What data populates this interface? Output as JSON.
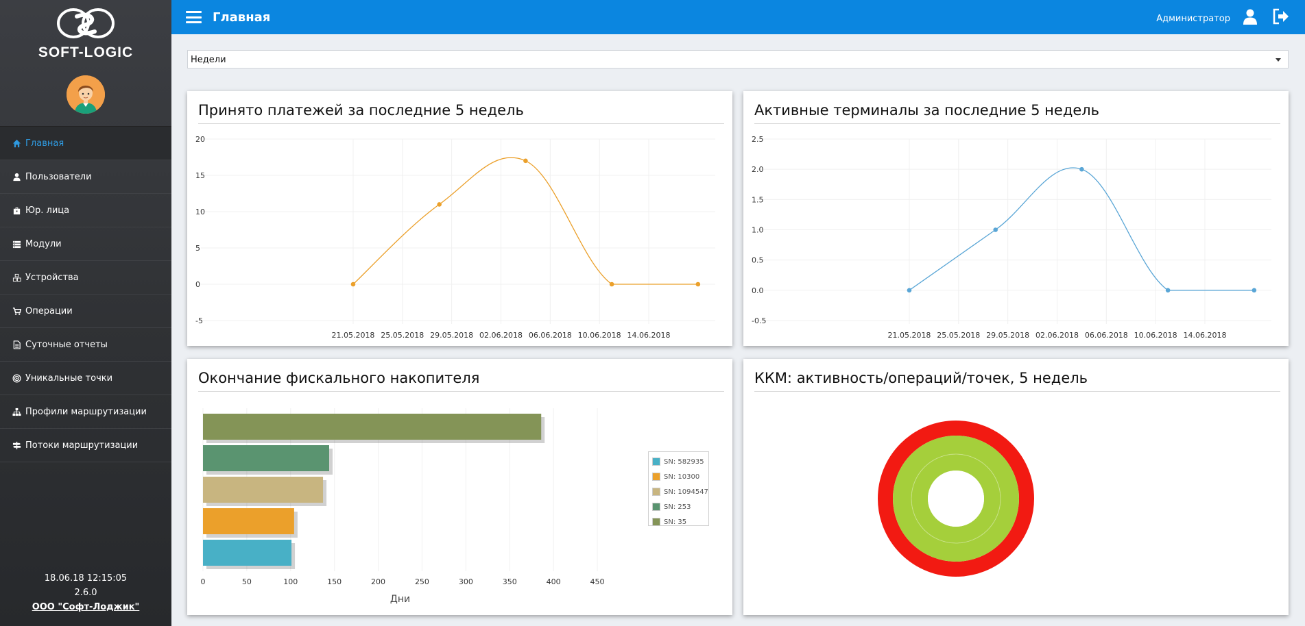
{
  "sidebar": {
    "logo_text": "SOFT-LOGIC",
    "items": [
      {
        "label": "Главная",
        "icon": "home-icon",
        "active": true
      },
      {
        "label": "Пользователи",
        "icon": "user-icon"
      },
      {
        "label": "Юр. лица",
        "icon": "briefcase-icon"
      },
      {
        "label": "Модули",
        "icon": "server-icon"
      },
      {
        "label": "Устройства",
        "icon": "cubes-icon"
      },
      {
        "label": "Операции",
        "icon": "cart-icon"
      },
      {
        "label": "Суточные отчеты",
        "icon": "document-icon"
      },
      {
        "label": "Уникальные точки",
        "icon": "bullseye-icon"
      },
      {
        "label": "Профили маршрутизации",
        "icon": "sitemap-icon"
      },
      {
        "label": "Потоки маршрутизации",
        "icon": "signpost-icon"
      }
    ],
    "footer": {
      "datetime": "18.06.18 12:15:05",
      "version": "2.6.0",
      "company": "ООО \"Софт-Лоджик\""
    }
  },
  "header": {
    "title": "Главная",
    "user": "Администратор"
  },
  "period_select": {
    "value": "Недели"
  },
  "colors": {
    "accent": "#0b86e0",
    "payments_line": "#eba02b",
    "terminals_line": "#5aa6d6"
  },
  "panels": {
    "payments": {
      "title": "Принято платежей за последние 5 недель"
    },
    "terminals": {
      "title": "Активные терминалы за последние 5 недель"
    },
    "fiscal": {
      "title": "Окончание фискального накопителя"
    },
    "kkm": {
      "title": "ККМ: активность/операций/точек, 5 недель"
    }
  },
  "chart_data": [
    {
      "type": "line",
      "x": [
        "2018-05-21",
        "2018-05-28",
        "2018-06-04",
        "2018-06-11",
        "2018-06-18"
      ],
      "values": [
        0,
        11,
        17,
        0,
        0
      ],
      "xticks": [
        "21.05.2018",
        "25.05.2018",
        "29.05.2018",
        "02.06.2018",
        "06.06.2018",
        "10.06.2018",
        "14.06.2018"
      ],
      "yticks": [
        "20",
        "15",
        "10",
        "5",
        "0",
        "-5"
      ],
      "ylim": [
        -5,
        20
      ]
    },
    {
      "type": "line",
      "x": [
        "2018-05-21",
        "2018-05-28",
        "2018-06-04",
        "2018-06-11",
        "2018-06-18"
      ],
      "values": [
        0,
        1,
        2,
        0,
        0
      ],
      "xticks": [
        "21.05.2018",
        "25.05.2018",
        "29.05.2018",
        "02.06.2018",
        "06.06.2018",
        "10.06.2018",
        "14.06.2018"
      ],
      "yticks": [
        "2.5",
        "2.0",
        "1.5",
        "1.0",
        "0.5",
        "0.0",
        "-0.5"
      ],
      "ylim": [
        -0.5,
        2.5
      ]
    },
    {
      "type": "bar",
      "orientation": "horizontal",
      "series": [
        {
          "name": "SN: 35",
          "value": 386,
          "color": "#849457"
        },
        {
          "name": "SN: 253",
          "value": 144,
          "color": "#5a9470"
        },
        {
          "name": "SN: 1094547",
          "value": 137,
          "color": "#c8b580"
        },
        {
          "name": "SN: 10300",
          "value": 104,
          "color": "#eba02b"
        },
        {
          "name": "SN: 582935",
          "value": 101,
          "color": "#48b0c6"
        }
      ],
      "legend_order": [
        "SN: 582935",
        "SN: 10300",
        "SN: 1094547",
        "SN: 253",
        "SN: 35"
      ],
      "xticks": [
        "0",
        "50",
        "100",
        "150",
        "200",
        "250",
        "300",
        "350",
        "400",
        "450"
      ],
      "xlabel": "Дни",
      "xlim": [
        0,
        450
      ],
      "legend": "right"
    },
    {
      "type": "pie",
      "style": "nested-donut",
      "rings": [
        {
          "color": "#f21a12",
          "value": 1
        },
        {
          "color": "#a5cf3b",
          "value": 1
        },
        {
          "color": "#a5cf3b",
          "value": 1
        }
      ]
    }
  ]
}
